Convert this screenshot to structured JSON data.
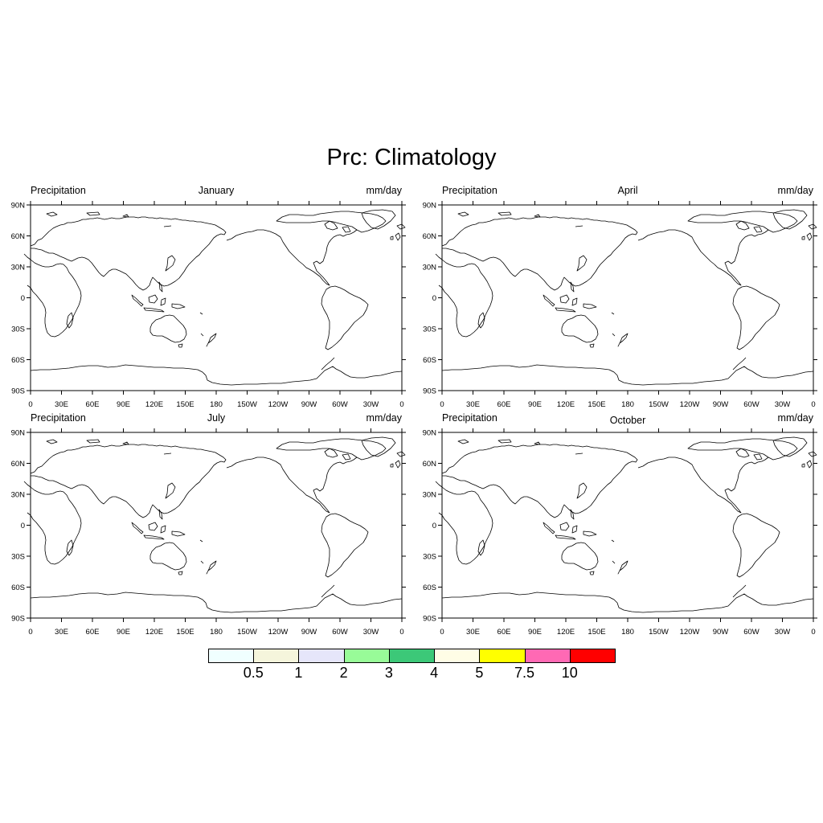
{
  "title": "Prc: Climatology",
  "panels": [
    {
      "left_label": "Precipitation",
      "center_label": "January",
      "right_label": "mm/day"
    },
    {
      "left_label": "Precipitation",
      "center_label": "April",
      "right_label": "mm/day"
    },
    {
      "left_label": "Precipitation",
      "center_label": "July",
      "right_label": "mm/day"
    },
    {
      "left_label": "Precipitation",
      "center_label": "October",
      "right_label": "mm/day"
    }
  ],
  "lat_ticks": [
    "90N",
    "60N",
    "30N",
    "0",
    "30S",
    "60S",
    "90S"
  ],
  "lon_ticks": [
    "0",
    "30E",
    "60E",
    "90E",
    "120E",
    "150E",
    "180",
    "150W",
    "120W",
    "90W",
    "60W",
    "30W",
    "0"
  ],
  "map": {
    "projection": "cylindrical equidistant",
    "lon_range": [
      0,
      360
    ],
    "lat_range": [
      -90,
      90
    ],
    "fill": "none (no precipitation shading visible)",
    "coastlines": true
  },
  "colorbar": {
    "colors": [
      "#f0ffff",
      "#f5f5dc",
      "#e6e6fa",
      "#98fb98",
      "#3cc878",
      "#fffde6",
      "#ffff00",
      "#ff69b4",
      "#ff0000"
    ],
    "labels": [
      "0.5",
      "1",
      "2",
      "3",
      "4",
      "5",
      "7.5",
      "10"
    ]
  }
}
